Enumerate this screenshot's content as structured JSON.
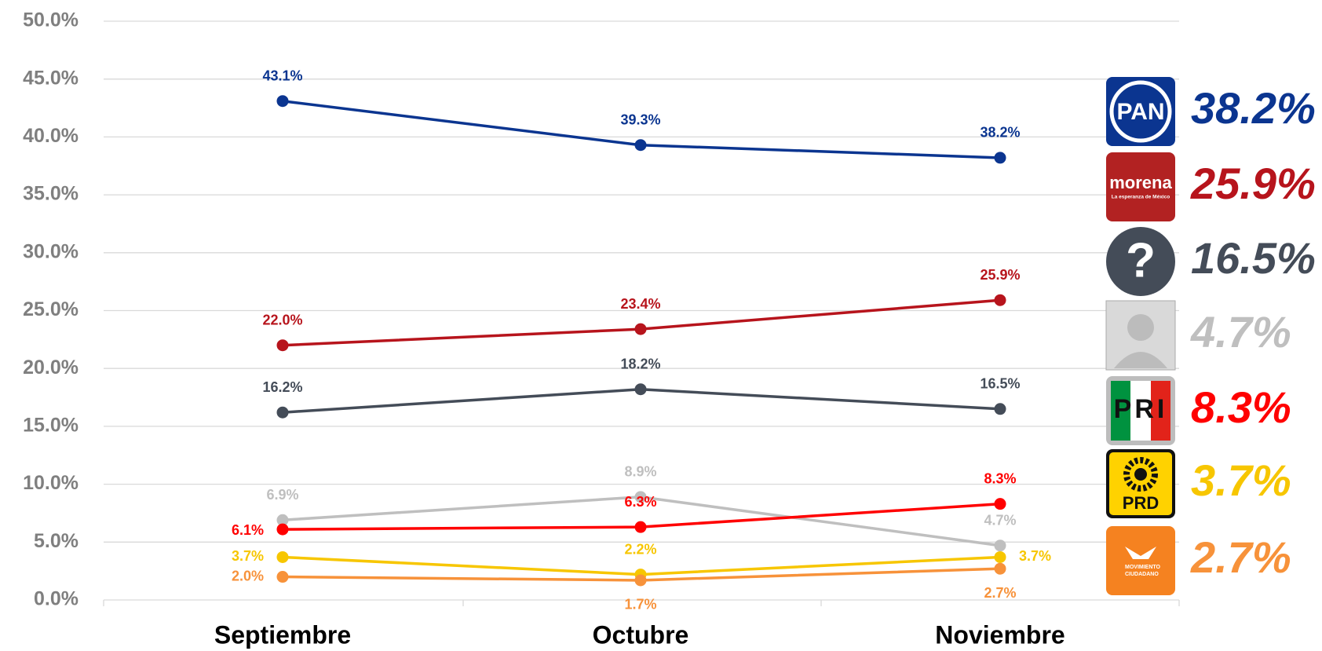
{
  "chart_data": {
    "type": "line",
    "categories": [
      "Septiembre",
      "Octubre",
      "Noviembre"
    ],
    "ylim": [
      0,
      50
    ],
    "yticks": [
      {
        "value": 0,
        "label": "0.0%"
      },
      {
        "value": 5,
        "label": "5.0%"
      },
      {
        "value": 10,
        "label": "10.0%"
      },
      {
        "value": 15,
        "label": "15.0%"
      },
      {
        "value": 20,
        "label": "20.0%"
      },
      {
        "value": 25,
        "label": "25.0%"
      },
      {
        "value": 30,
        "label": "30.0%"
      },
      {
        "value": 35,
        "label": "35.0%"
      },
      {
        "value": 40,
        "label": "40.0%"
      },
      {
        "value": 45,
        "label": "45.0%"
      },
      {
        "value": 50,
        "label": "50.0%"
      }
    ],
    "grid": true,
    "series": [
      {
        "name": "PAN",
        "color": "#0b3590",
        "values": [
          43.1,
          39.3,
          38.2
        ],
        "value_labels": [
          "43.1%",
          "39.3%",
          "38.2%"
        ]
      },
      {
        "name": "morena",
        "subtitle": "La esperanza de México",
        "color": "#b7141c",
        "values": [
          22.0,
          23.4,
          25.9
        ],
        "value_labels": [
          "22.0%",
          "23.4%",
          "25.9%"
        ]
      },
      {
        "name": "?",
        "color": "#444c58",
        "values": [
          16.2,
          18.2,
          16.5
        ],
        "value_labels": [
          "16.2%",
          "18.2%",
          "16.5%"
        ]
      },
      {
        "color": "#bfbfbf",
        "values": [
          6.9,
          8.9,
          4.7
        ],
        "value_labels": [
          "6.9%",
          "8.9%",
          "4.7%"
        ]
      },
      {
        "name": "PRI",
        "color": "#ff0000",
        "values": [
          6.1,
          6.3,
          8.3
        ],
        "value_labels": [
          "6.1%",
          "6.3%",
          "8.3%"
        ]
      },
      {
        "name": "PRD",
        "color": "#f7c600",
        "values": [
          3.7,
          2.2,
          3.7
        ],
        "value_labels": [
          "3.7%",
          "2.2%",
          "3.7%"
        ]
      },
      {
        "name": "MOVIMIENTO CIUDADANO",
        "color": "#f7923a",
        "values": [
          2.0,
          1.7,
          2.7
        ],
        "value_labels": [
          "2.0%",
          "1.7%",
          "2.7%"
        ]
      }
    ]
  }
}
